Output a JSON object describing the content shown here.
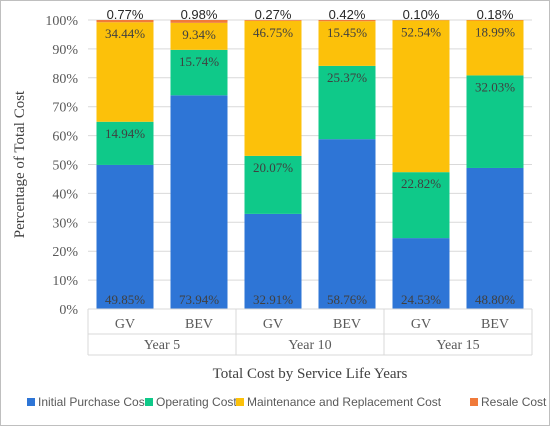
{
  "chart_data": {
    "type": "bar",
    "stacked": true,
    "percent_stacked": true,
    "groups": [
      {
        "label": "Year 5",
        "categories": [
          "GV",
          "BEV"
        ]
      },
      {
        "label": "Year 10",
        "categories": [
          "GV",
          "BEV"
        ]
      },
      {
        "label": "Year 15",
        "categories": [
          "GV",
          "BEV"
        ]
      }
    ],
    "series": [
      {
        "name": "Initial Purchase Cost",
        "color": "#2e75d6",
        "values": [
          49.85,
          73.94,
          32.91,
          58.76,
          24.53,
          48.8
        ],
        "labels": [
          "49.85%",
          "73.94%",
          "32.91%",
          "58.76%",
          "24.53%",
          "48.80%"
        ]
      },
      {
        "name": "Operating Cost",
        "color": "#0fc989",
        "values": [
          14.94,
          15.74,
          20.07,
          25.37,
          22.82,
          32.03
        ],
        "labels": [
          "14.94%",
          "15.74%",
          "20.07%",
          "25.37%",
          "22.82%",
          "32.03%"
        ]
      },
      {
        "name": "Maintenance and Replacement Cost",
        "color": "#fcc10a",
        "values": [
          34.44,
          9.34,
          46.75,
          15.45,
          52.54,
          18.99
        ],
        "labels": [
          "34.44%",
          "9.34%",
          "46.75%",
          "15.45%",
          "52.54%",
          "18.99%"
        ]
      },
      {
        "name": "Resale Cost",
        "color": "#f07a3a",
        "values": [
          0.77,
          0.98,
          0.27,
          0.42,
          0.1,
          0.18
        ],
        "labels": [
          "0.77%",
          "0.98%",
          "0.27%",
          "0.42%",
          "0.10%",
          "0.18%"
        ]
      }
    ],
    "ylim": [
      0,
      100
    ],
    "y_ticks": [
      "0%",
      "10%",
      "20%",
      "30%",
      "40%",
      "50%",
      "60%",
      "70%",
      "80%",
      "90%",
      "100%"
    ],
    "ylabel": "Percentage of Total Cost",
    "xlabel": "Total Cost by Service Life Years",
    "grid": true,
    "legend_position": "bottom"
  }
}
